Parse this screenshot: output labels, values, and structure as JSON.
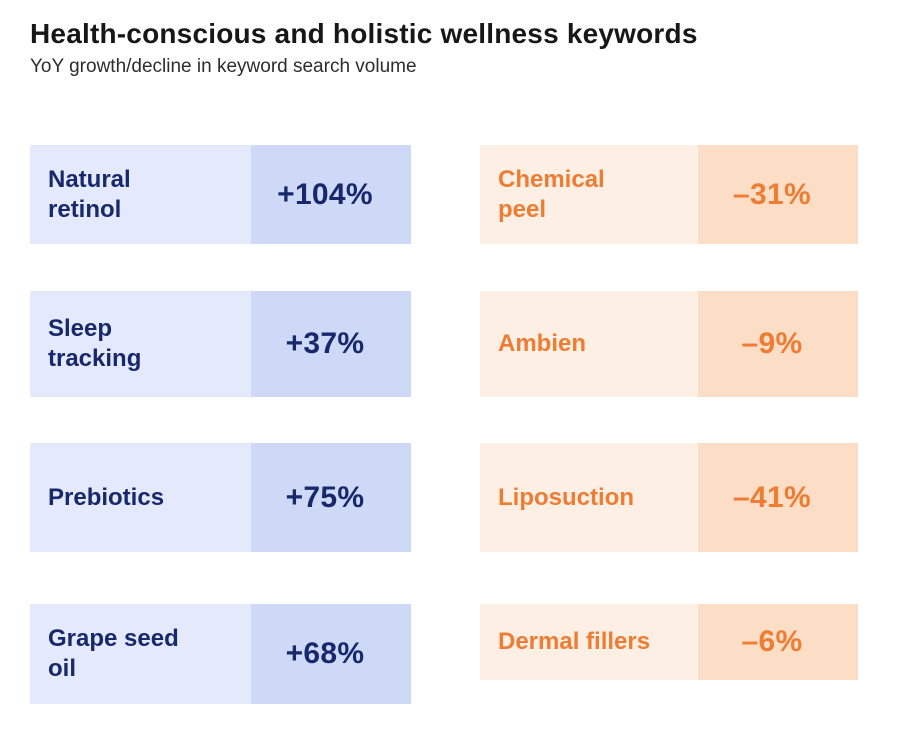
{
  "header": {
    "title": "Health-conscious and holistic wellness keywords",
    "subtitle": "YoY growth/decline in keyword search volume"
  },
  "colors": {
    "growth_text": "#17286D",
    "growth_label_bg": "#E4EAFB",
    "growth_value_bg": "#CDD9F7",
    "decline_text": "#EF7C33",
    "decline_label_bg": "#FDEFE4",
    "decline_value_bg": "#FCDEC6",
    "title_text": "#171717",
    "background": "#FFFFFF"
  },
  "chart_data": {
    "type": "table",
    "title": "Health-conscious and holistic wellness keywords",
    "subtitle": "YoY growth/decline in keyword search volume",
    "layout": "two-column card grid; left column = growth (blue), right column = decline (orange); each card split into keyword label cell and percent value cell",
    "columns": [
      {
        "name": "growth",
        "theme": "blue",
        "items": [
          {
            "keyword": "Natural retinol",
            "label": "Natural\nretinol",
            "change": "+104%",
            "change_pct": 104
          },
          {
            "keyword": "Sleep tracking",
            "label": "Sleep\ntracking",
            "change": "+37%",
            "change_pct": 37
          },
          {
            "keyword": "Prebiotics",
            "label": "Prebiotics",
            "change": "+75%",
            "change_pct": 75
          },
          {
            "keyword": "Grape seed oil",
            "label": "Grape seed\noil",
            "change": "+68%",
            "change_pct": 68
          }
        ]
      },
      {
        "name": "decline",
        "theme": "orange",
        "items": [
          {
            "keyword": "Chemical peel",
            "label": "Chemical\npeel",
            "change": "–31%",
            "change_pct": -31
          },
          {
            "keyword": "Ambien",
            "label": "Ambien",
            "change": "–9%",
            "change_pct": -9
          },
          {
            "keyword": "Liposuction",
            "label": "Liposuction",
            "change": "–41%",
            "change_pct": -41
          },
          {
            "keyword": "Dermal fillers",
            "label": "Dermal fillers",
            "change": "–6%",
            "change_pct": -6
          }
        ]
      }
    ]
  }
}
